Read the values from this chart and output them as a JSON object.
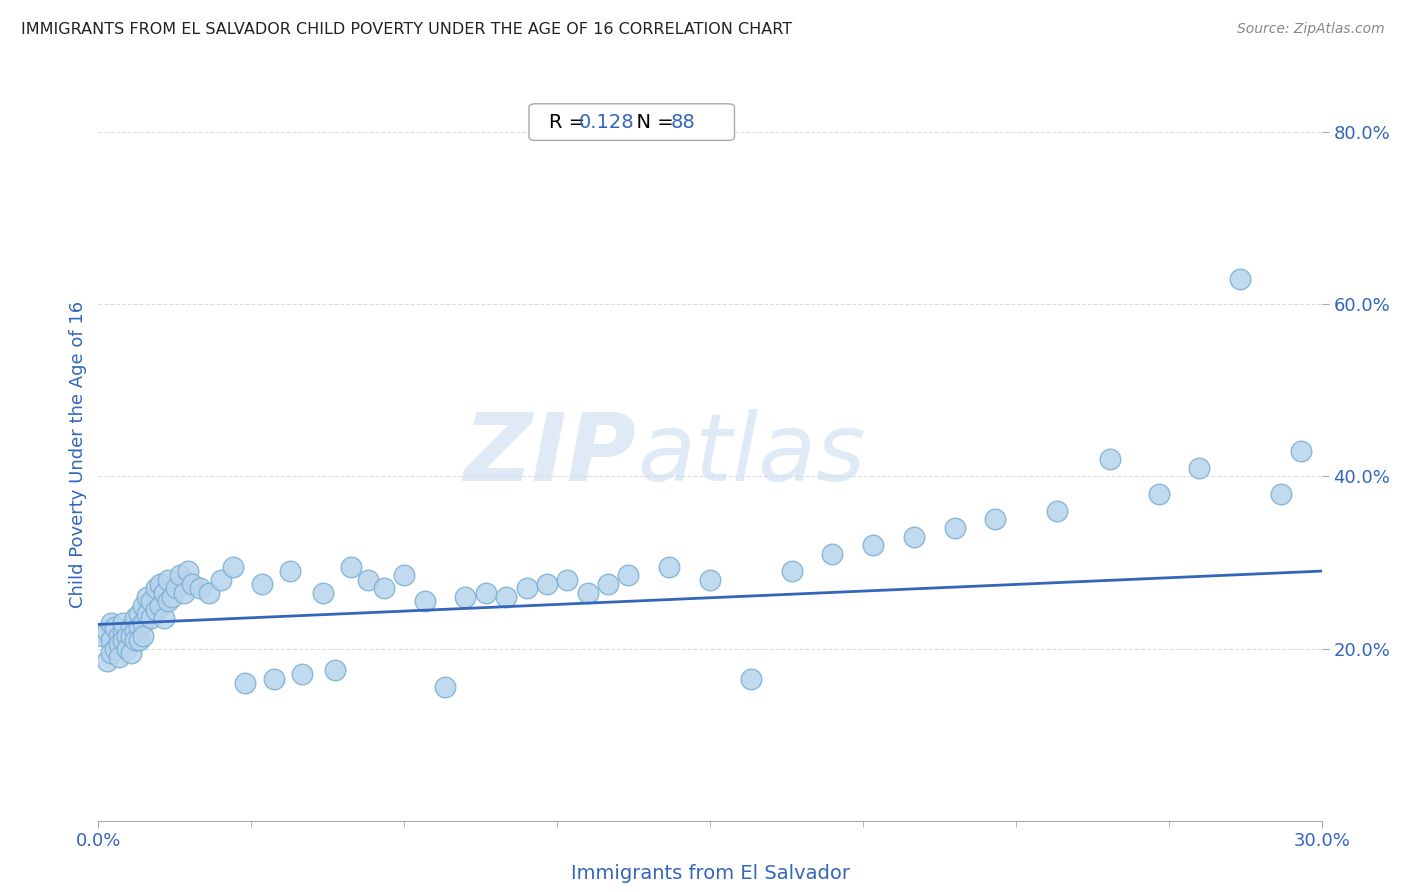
{
  "title": "IMMIGRANTS FROM EL SALVADOR CHILD POVERTY UNDER THE AGE OF 16 CORRELATION CHART",
  "source": "Source: ZipAtlas.com",
  "xlabel": "Immigrants from El Salvador",
  "ylabel": "Child Poverty Under the Age of 16",
  "R": 0.128,
  "N": 88,
  "xlim": [
    0.0,
    0.3
  ],
  "ylim": [
    0.0,
    0.85
  ],
  "yticks": [
    0.2,
    0.4,
    0.6,
    0.8
  ],
  "ytick_labels": [
    "20.0%",
    "40.0%",
    "60.0%",
    "80.0%"
  ],
  "xtick_labels": [
    "0.0%",
    "30.0%"
  ],
  "scatter_color": "#b8d4ec",
  "scatter_edge_color": "#7aafd4",
  "line_color": "#3366bb",
  "title_color": "#222222",
  "axis_label_color": "#3366bb",
  "tick_label_color": "#3366bb",
  "watermark_zip": "ZIP",
  "watermark_atlas": "atlas",
  "background_color": "#ffffff",
  "scatter_x": [
    0.001,
    0.002,
    0.002,
    0.003,
    0.003,
    0.003,
    0.004,
    0.004,
    0.005,
    0.005,
    0.005,
    0.006,
    0.006,
    0.006,
    0.007,
    0.007,
    0.008,
    0.008,
    0.008,
    0.009,
    0.009,
    0.009,
    0.01,
    0.01,
    0.01,
    0.011,
    0.011,
    0.011,
    0.012,
    0.012,
    0.013,
    0.013,
    0.014,
    0.014,
    0.015,
    0.015,
    0.016,
    0.016,
    0.017,
    0.017,
    0.018,
    0.019,
    0.02,
    0.021,
    0.022,
    0.023,
    0.025,
    0.027,
    0.03,
    0.033,
    0.036,
    0.04,
    0.043,
    0.047,
    0.05,
    0.055,
    0.058,
    0.062,
    0.066,
    0.07,
    0.075,
    0.08,
    0.085,
    0.09,
    0.095,
    0.1,
    0.105,
    0.11,
    0.115,
    0.12,
    0.125,
    0.13,
    0.14,
    0.15,
    0.16,
    0.17,
    0.18,
    0.19,
    0.2,
    0.21,
    0.22,
    0.235,
    0.248,
    0.26,
    0.27,
    0.28,
    0.29,
    0.295
  ],
  "scatter_y": [
    0.215,
    0.22,
    0.185,
    0.21,
    0.23,
    0.195,
    0.2,
    0.225,
    0.215,
    0.205,
    0.19,
    0.22,
    0.21,
    0.23,
    0.215,
    0.2,
    0.225,
    0.215,
    0.195,
    0.235,
    0.22,
    0.21,
    0.24,
    0.225,
    0.21,
    0.25,
    0.23,
    0.215,
    0.26,
    0.24,
    0.255,
    0.235,
    0.27,
    0.245,
    0.275,
    0.25,
    0.265,
    0.235,
    0.28,
    0.255,
    0.26,
    0.27,
    0.285,
    0.265,
    0.29,
    0.275,
    0.27,
    0.265,
    0.28,
    0.295,
    0.16,
    0.275,
    0.165,
    0.29,
    0.17,
    0.265,
    0.175,
    0.295,
    0.28,
    0.27,
    0.285,
    0.255,
    0.155,
    0.26,
    0.265,
    0.26,
    0.27,
    0.275,
    0.28,
    0.265,
    0.275,
    0.285,
    0.295,
    0.28,
    0.165,
    0.29,
    0.31,
    0.32,
    0.33,
    0.34,
    0.35,
    0.36,
    0.42,
    0.38,
    0.41,
    0.63,
    0.38,
    0.43
  ],
  "line_x_start": 0.0,
  "line_x_end": 0.3,
  "line_y_start": 0.228,
  "line_y_end": 0.29
}
